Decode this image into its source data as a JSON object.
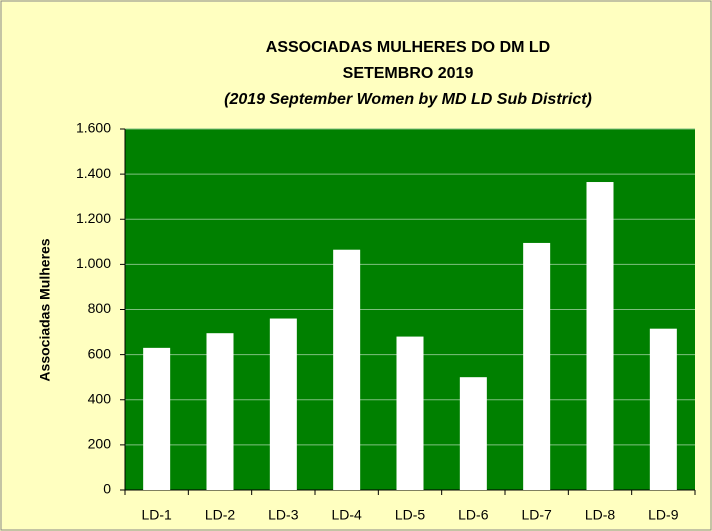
{
  "chart_data": {
    "type": "bar",
    "title": "ASSOCIADAS MULHERES DO DM LD",
    "subtitle": "SETEMBRO 2019",
    "subtitle2": "(2019 September Women by MD LD Sub District)",
    "y_label": "Associadas  Mulheres",
    "categories": [
      "LD-1",
      "LD-2",
      "LD-3",
      "LD-4",
      "LD-5",
      "LD-6",
      "LD-7",
      "LD-8",
      "LD-9"
    ],
    "values": [
      630,
      695,
      760,
      1065,
      680,
      500,
      1095,
      1365,
      715
    ],
    "color": "#ffffff",
    "plot_color": "#008000",
    "ylim": [
      0,
      1600
    ],
    "yticks": [
      0,
      200,
      400,
      600,
      800,
      {
        "value": 1000,
        "label": "1.000"
      },
      {
        "value": 1200,
        "label": "1.200"
      },
      {
        "value": 1400,
        "label": "1.400"
      },
      {
        "value": 1600,
        "label": "1.600"
      }
    ],
    "grid": true
  }
}
